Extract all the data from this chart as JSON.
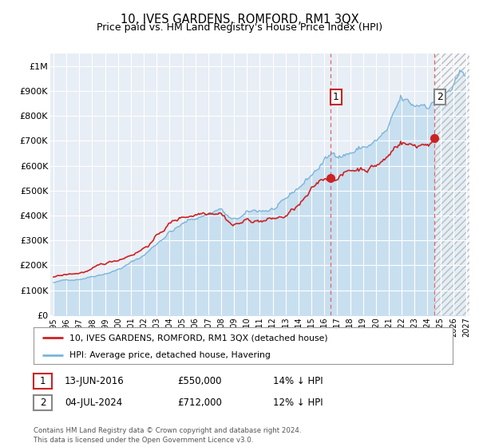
{
  "title": "10, IVES GARDENS, ROMFORD, RM1 3QX",
  "subtitle": "Price paid vs. HM Land Registry's House Price Index (HPI)",
  "title_fontsize": 10.5,
  "subtitle_fontsize": 9,
  "ylabel_values": [
    "£0",
    "£100K",
    "£200K",
    "£300K",
    "£400K",
    "£500K",
    "£600K",
    "£700K",
    "£800K",
    "£900K",
    "£1M"
  ],
  "ylim": [
    0,
    1050000
  ],
  "yticks": [
    0,
    100000,
    200000,
    300000,
    400000,
    500000,
    600000,
    700000,
    800000,
    900000,
    1000000
  ],
  "xlim_start": 1994.75,
  "xlim_end": 2027.25,
  "background_color": "#e8eef5",
  "grid_color": "#ffffff",
  "hpi_color": "#7ab5d8",
  "hpi_fill_color": "#c8dff0",
  "price_color": "#cc2222",
  "dashed_line_color": "#dd6666",
  "point1_date_num": 2016.45,
  "point1_value": 550000,
  "point2_date_num": 2024.51,
  "point2_value": 712000,
  "label1": "1",
  "label2": "2",
  "legend_price_label": "10, IVES GARDENS, ROMFORD, RM1 3QX (detached house)",
  "legend_hpi_label": "HPI: Average price, detached house, Havering",
  "table_row1": [
    "1",
    "13-JUN-2016",
    "£550,000",
    "14% ↓ HPI"
  ],
  "table_row2": [
    "2",
    "04-JUL-2024",
    "£712,000",
    "12% ↓ HPI"
  ],
  "footer": "Contains HM Land Registry data © Crown copyright and database right 2024.\nThis data is licensed under the Open Government Licence v3.0."
}
